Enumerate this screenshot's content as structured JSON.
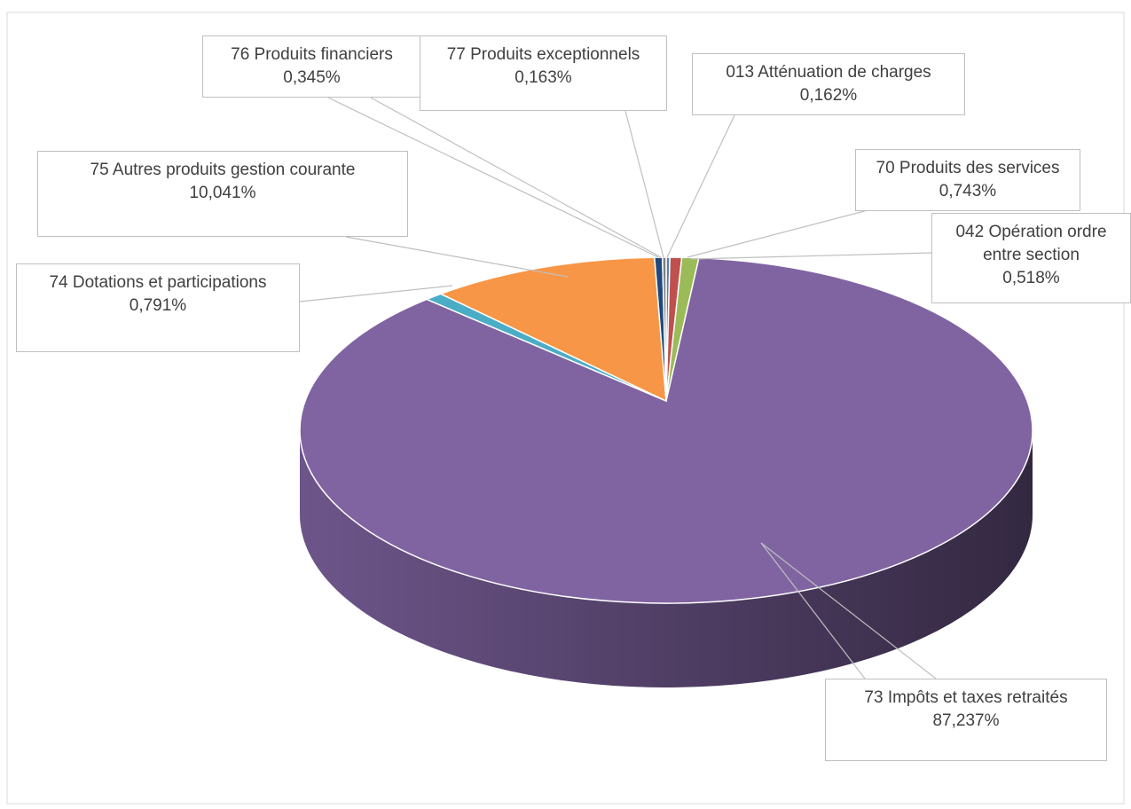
{
  "chart_data": {
    "type": "pie",
    "categories": [
      "013 Atténuation de charges",
      "042 Opération ordre entre section",
      "70 Produits des services",
      "73 Impôts et taxes retraités",
      "74 Dotations et participations",
      "75 Autres produits gestion courante",
      "76 Produits financiers",
      "77 Produits exceptionnels"
    ],
    "values": [
      0.162,
      0.518,
      0.743,
      87.237,
      0.791,
      10.041,
      0.345,
      0.163
    ],
    "value_labels": [
      "0,162%",
      "0,518%",
      "0,743%",
      "87,237%",
      "0,791%",
      "10,041%",
      "0,345%",
      "0,163%"
    ],
    "colors": [
      "#4f81bd",
      "#c0504d",
      "#9bbb59",
      "#8064a2",
      "#4bacc6",
      "#f79646",
      "#1f497d",
      "#7f7f7f"
    ]
  }
}
